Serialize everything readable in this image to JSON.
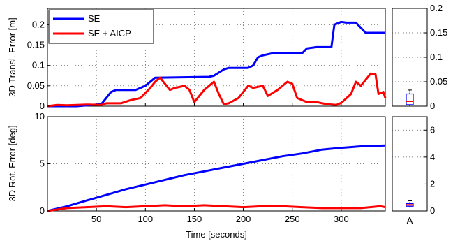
{
  "chart_data": [
    {
      "type": "line",
      "ylabel": "3D Transl. Error [m]",
      "xlim": [
        0,
        345
      ],
      "ylim": [
        0,
        0.24
      ],
      "yticks": [
        "0",
        "0.05",
        "0.1",
        "0.15",
        "0.2"
      ],
      "ytick_values": [
        0,
        0.05,
        0.1,
        0.15,
        0.2
      ],
      "xtick_values": [
        50,
        100,
        150,
        200,
        250,
        300
      ],
      "grid": "dotted",
      "legend_position": "top-left",
      "series": [
        {
          "name": "SE",
          "color": "#0000ff",
          "points": [
            [
              0,
              0
            ],
            [
              30,
              0
            ],
            [
              55,
              0.005
            ],
            [
              60,
              0.02
            ],
            [
              65,
              0.035
            ],
            [
              70,
              0.04
            ],
            [
              90,
              0.04
            ],
            [
              95,
              0.045
            ],
            [
              100,
              0.05
            ],
            [
              105,
              0.06
            ],
            [
              110,
              0.07
            ],
            [
              165,
              0.072
            ],
            [
              170,
              0.075
            ],
            [
              180,
              0.09
            ],
            [
              185,
              0.094
            ],
            [
              205,
              0.094
            ],
            [
              210,
              0.1
            ],
            [
              215,
              0.12
            ],
            [
              220,
              0.125
            ],
            [
              230,
              0.13
            ],
            [
              260,
              0.13
            ],
            [
              265,
              0.142
            ],
            [
              275,
              0.145
            ],
            [
              290,
              0.145
            ],
            [
              293,
              0.2
            ],
            [
              300,
              0.207
            ],
            [
              305,
              0.205
            ],
            [
              315,
              0.205
            ],
            [
              325,
              0.18
            ],
            [
              345,
              0.18
            ]
          ]
        },
        {
          "name": "SE + AICP",
          "color": "#ff0000",
          "points": [
            [
              0,
              0
            ],
            [
              10,
              0.003
            ],
            [
              20,
              0.002
            ],
            [
              40,
              0.004
            ],
            [
              55,
              0.003
            ],
            [
              60,
              0.007
            ],
            [
              75,
              0.007
            ],
            [
              85,
              0.015
            ],
            [
              95,
              0.02
            ],
            [
              105,
              0.045
            ],
            [
              110,
              0.06
            ],
            [
              115,
              0.07
            ],
            [
              125,
              0.04
            ],
            [
              130,
              0.045
            ],
            [
              140,
              0.05
            ],
            [
              145,
              0.04
            ],
            [
              150,
              0.01
            ],
            [
              160,
              0.04
            ],
            [
              170,
              0.06
            ],
            [
              175,
              0.03
            ],
            [
              180,
              0.005
            ],
            [
              185,
              0.007
            ],
            [
              195,
              0.02
            ],
            [
              205,
              0.05
            ],
            [
              210,
              0.045
            ],
            [
              220,
              0.05
            ],
            [
              225,
              0.025
            ],
            [
              235,
              0.04
            ],
            [
              245,
              0.06
            ],
            [
              250,
              0.055
            ],
            [
              255,
              0.02
            ],
            [
              265,
              0.01
            ],
            [
              275,
              0.01
            ],
            [
              285,
              0.005
            ],
            [
              295,
              0.003
            ],
            [
              300,
              0.008
            ],
            [
              310,
              0.03
            ],
            [
              315,
              0.06
            ],
            [
              320,
              0.05
            ],
            [
              330,
              0.08
            ],
            [
              335,
              0.078
            ],
            [
              338,
              0.03
            ],
            [
              343,
              0.035
            ],
            [
              345,
              0.02
            ]
          ]
        }
      ]
    },
    {
      "type": "line",
      "ylabel": "3D Rot. Error [deg]",
      "xlabel": "Time [seconds]",
      "xlim": [
        0,
        345
      ],
      "ylim": [
        0,
        10
      ],
      "yticks": [
        "0",
        "5",
        "10"
      ],
      "ytick_values": [
        0,
        5,
        10
      ],
      "xticks": [
        "50",
        "100",
        "150",
        "200",
        "250",
        "300"
      ],
      "xtick_values": [
        50,
        100,
        150,
        200,
        250,
        300
      ],
      "grid": "dotted",
      "series": [
        {
          "color": "#0000ff",
          "points": [
            [
              0,
              0
            ],
            [
              20,
              0.5
            ],
            [
              40,
              1.1
            ],
            [
              60,
              1.7
            ],
            [
              80,
              2.3
            ],
            [
              100,
              2.8
            ],
            [
              120,
              3.3
            ],
            [
              140,
              3.8
            ],
            [
              160,
              4.2
            ],
            [
              180,
              4.6
            ],
            [
              200,
              5.0
            ],
            [
              220,
              5.4
            ],
            [
              240,
              5.8
            ],
            [
              260,
              6.1
            ],
            [
              280,
              6.5
            ],
            [
              300,
              6.7
            ],
            [
              320,
              6.85
            ],
            [
              345,
              6.95
            ]
          ]
        },
        {
          "color": "#ff0000",
          "points": [
            [
              0,
              0
            ],
            [
              20,
              0.3
            ],
            [
              40,
              0.4
            ],
            [
              60,
              0.5
            ],
            [
              80,
              0.4
            ],
            [
              100,
              0.5
            ],
            [
              120,
              0.6
            ],
            [
              140,
              0.5
            ],
            [
              160,
              0.6
            ],
            [
              180,
              0.5
            ],
            [
              200,
              0.4
            ],
            [
              220,
              0.5
            ],
            [
              240,
              0.5
            ],
            [
              260,
              0.4
            ],
            [
              280,
              0.3
            ],
            [
              300,
              0.3
            ],
            [
              320,
              0.3
            ],
            [
              340,
              0.5
            ],
            [
              345,
              0.4
            ]
          ]
        }
      ]
    },
    {
      "type": "box",
      "ylim": [
        0,
        0.2
      ],
      "yticks": [
        "0",
        "0.05",
        "0.1",
        "0.15",
        "0.2"
      ],
      "ytick_values": [
        0,
        0.05,
        0.1,
        0.15,
        0.2
      ],
      "box": {
        "q1": 0.003,
        "median": 0.01,
        "q3": 0.025,
        "whisker_low": 0,
        "whisker_high": 0.033,
        "outlier": 0.035
      }
    },
    {
      "type": "box",
      "ylim": [
        0,
        7
      ],
      "yticks": [
        "0",
        "2",
        "4",
        "6"
      ],
      "ytick_values": [
        0,
        2,
        4,
        6
      ],
      "categories": [
        "A"
      ],
      "box": {
        "q1": 0.35,
        "median": 0.45,
        "q3": 0.55,
        "whisker_low": 0.25,
        "whisker_high": 0.75
      }
    }
  ]
}
